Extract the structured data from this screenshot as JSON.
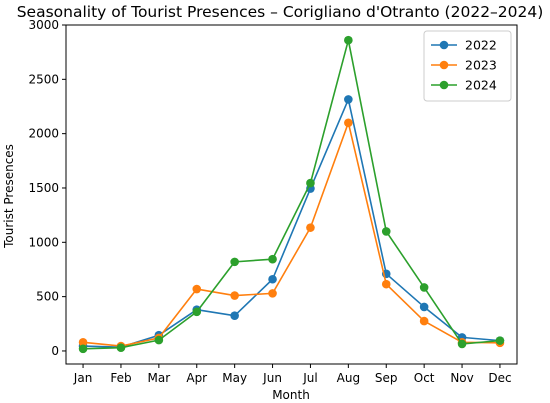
{
  "chart_data": {
    "type": "line",
    "title": "Seasonality of Tourist Presences – Corigliano d'Otranto (2022–2024)",
    "xlabel": "Month",
    "ylabel": "Tourist Presences",
    "categories": [
      "Jan",
      "Feb",
      "Mar",
      "Apr",
      "May",
      "Jun",
      "Jul",
      "Aug",
      "Sep",
      "Oct",
      "Nov",
      "Dec"
    ],
    "ylim": [
      -120,
      3000
    ],
    "yticks": [
      "0",
      "500",
      "1000",
      "1500",
      "2000",
      "2500",
      "3000"
    ],
    "grid": false,
    "legend_position": "top-right",
    "marker": "circle",
    "series": [
      {
        "name": "2022",
        "color": "#1f77b4",
        "values": [
          45,
          35,
          145,
          380,
          325,
          660,
          1495,
          2315,
          710,
          405,
          125,
          95
        ]
      },
      {
        "name": "2023",
        "color": "#ff7f0e",
        "values": [
          80,
          45,
          120,
          570,
          510,
          530,
          1135,
          2100,
          615,
          275,
          80,
          75
        ]
      },
      {
        "name": "2024",
        "color": "#2ca02c",
        "values": [
          20,
          30,
          100,
          360,
          820,
          845,
          1545,
          2860,
          1100,
          585,
          65,
          95
        ]
      }
    ]
  }
}
